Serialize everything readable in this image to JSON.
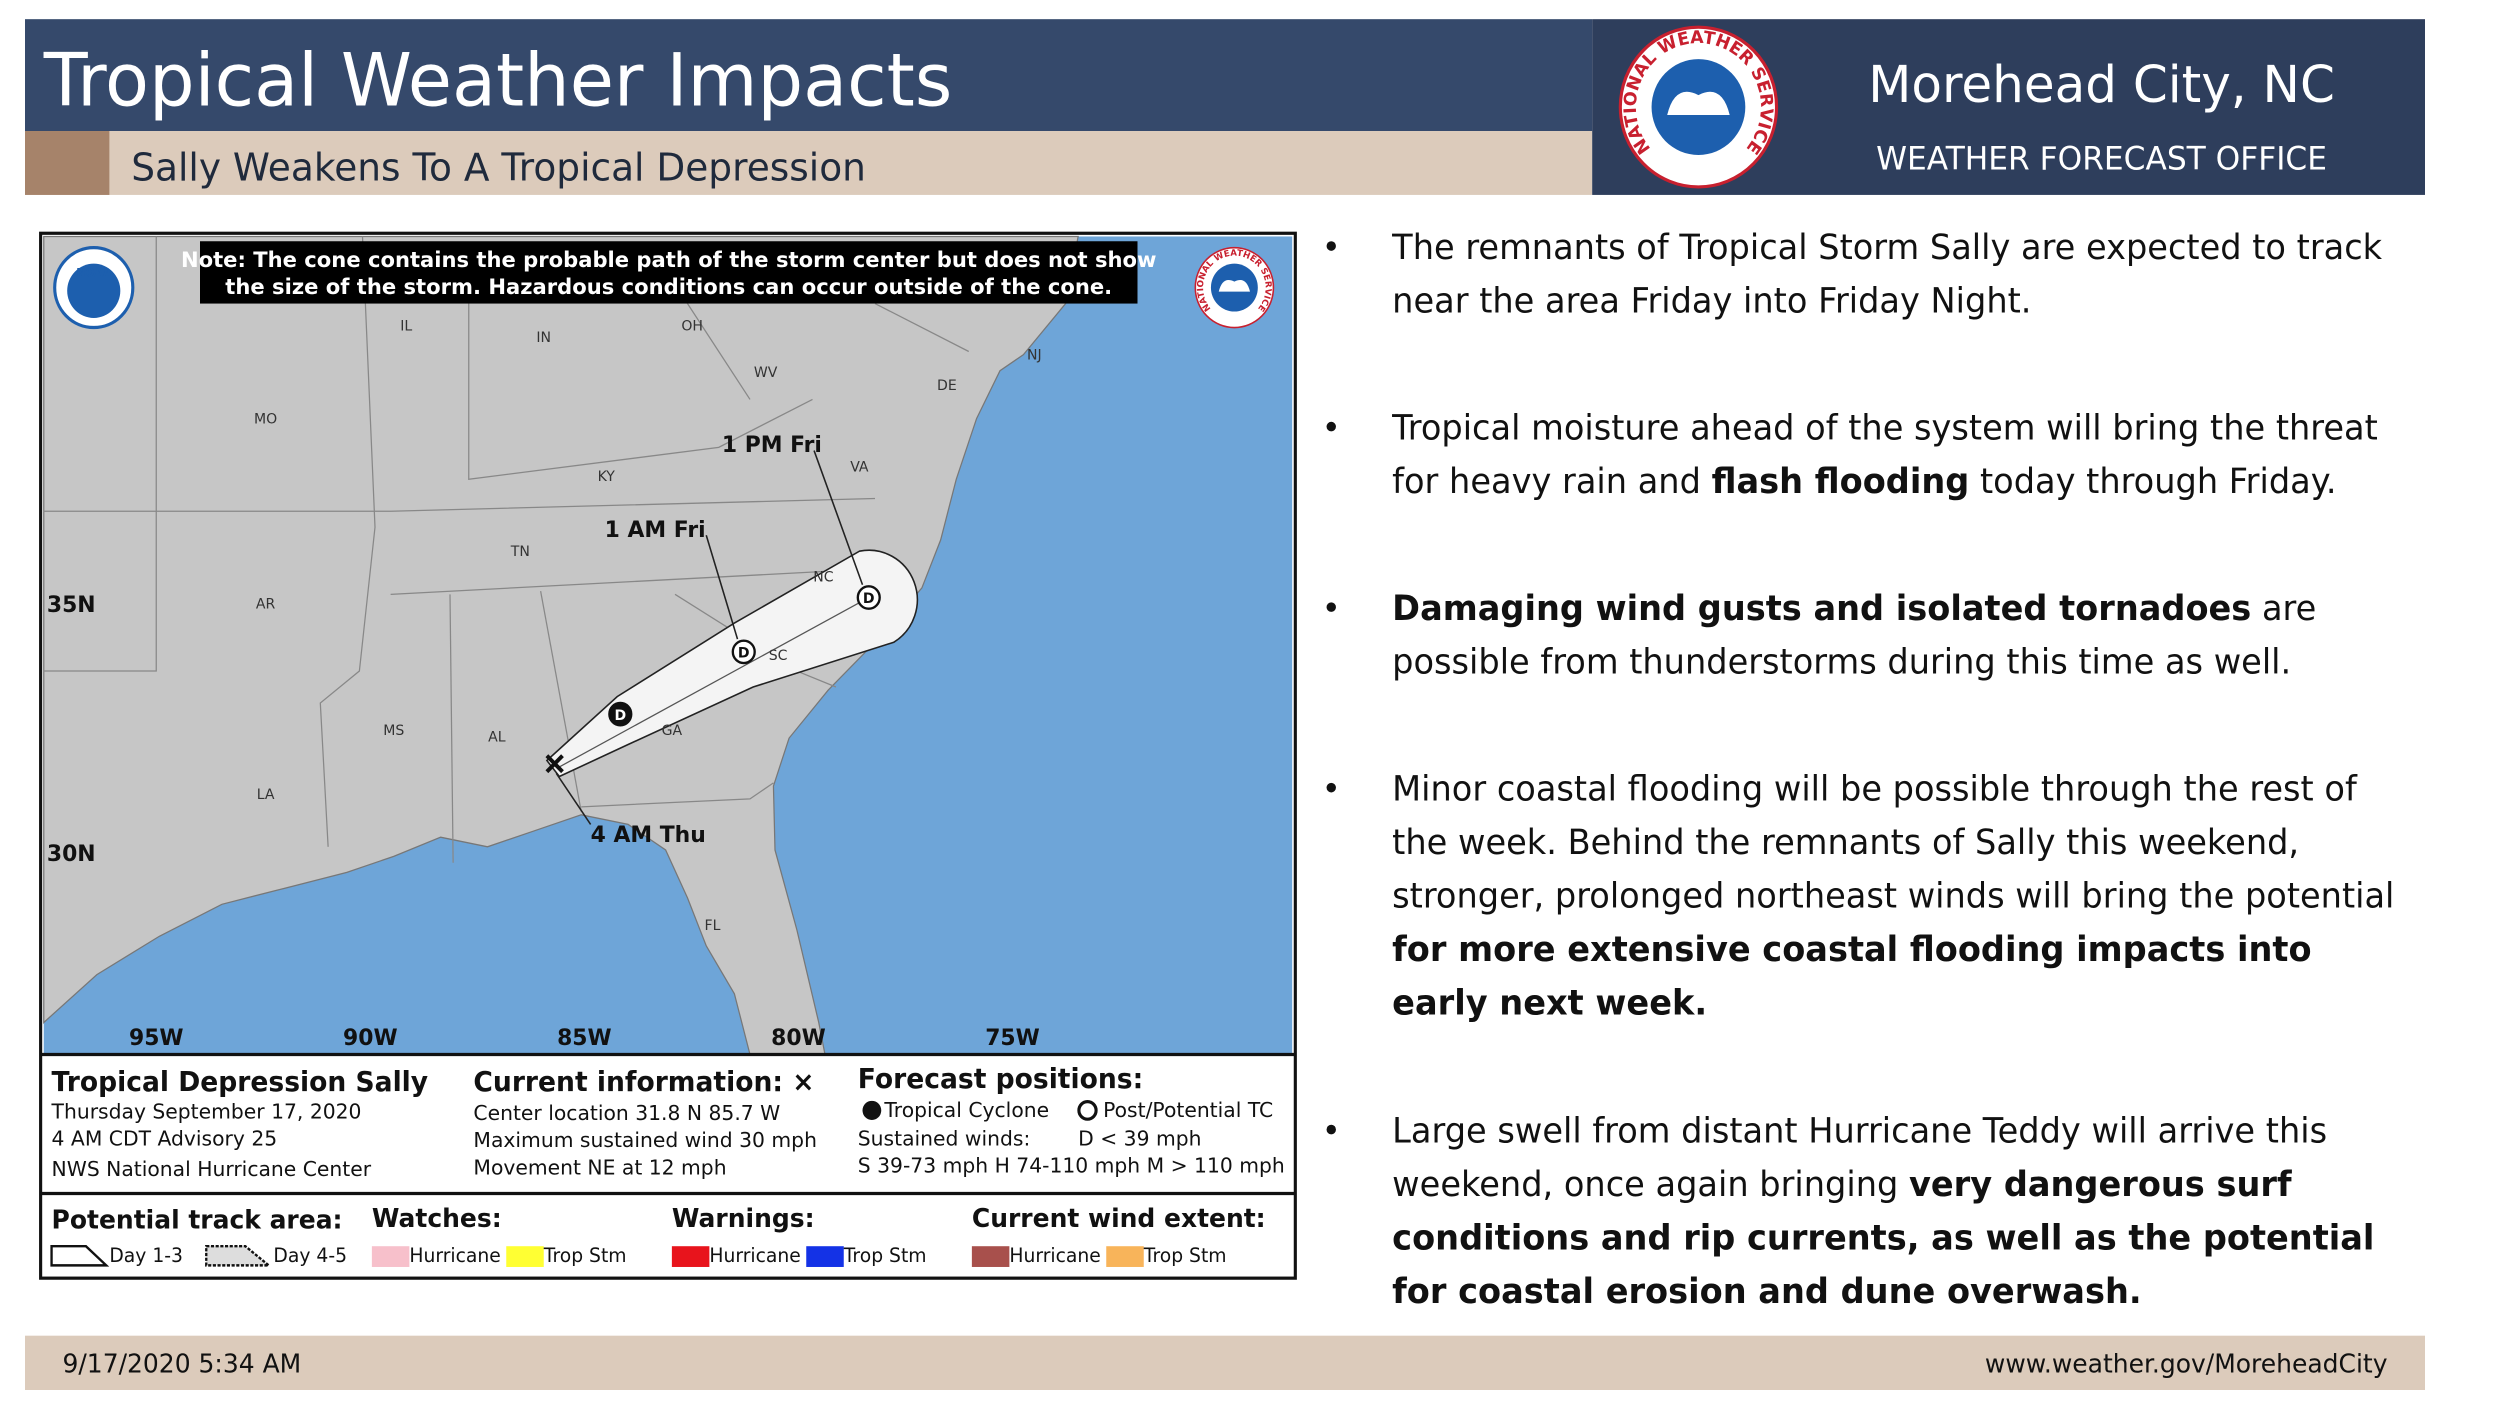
{
  "header": {
    "title": "Tropical Weather Impacts",
    "subtitle": "Sally Weakens To A Tropical Depression",
    "office": "Morehead City, NC",
    "office_type": "WEATHER FORECAST OFFICE",
    "logo_text": "NATIONAL WEATHER SERVICE"
  },
  "map": {
    "note": [
      "Note: The cone contains the probable path of the storm center but does not show",
      "the size of the storm. Hazardous conditions can occur outside of the cone."
    ],
    "noaa_logo": "NOAA",
    "nws_logo_text": "NATIONAL WEATHER SERVICE",
    "state_labels": [
      "IL",
      "IN",
      "OH",
      "MO",
      "WV",
      "KY",
      "VA",
      "TN",
      "NC",
      "AR",
      "SC",
      "MS",
      "AL",
      "GA",
      "LA",
      "FL",
      "NJ",
      "DE"
    ],
    "latitude_labels": [
      "35N",
      "30N"
    ],
    "longitude_labels": [
      "95W",
      "90W",
      "85W",
      "80W",
      "75W"
    ],
    "forecast_times": [
      "1 PM Fri",
      "1 AM Fri",
      "4 AM Thu"
    ],
    "forecast_symbols": [
      "D",
      "D",
      "D"
    ]
  },
  "info": {
    "storm": "Tropical Depression Sally",
    "date": "Thursday September 17, 2020",
    "advisory": "4 AM CDT Advisory 25",
    "center": "NWS National Hurricane Center",
    "current_title": "Current information: ×",
    "current_lines": [
      "Center location 31.8 N 85.7 W",
      "Maximum sustained wind 30 mph",
      "Movement NE at 12 mph"
    ],
    "forecast_title": "Forecast positions:",
    "tropical_cyclone": "Tropical Cyclone",
    "post_tc": "Post/Potential TC",
    "sustained": "Sustained winds:",
    "d_scale": "D < 39 mph",
    "scale": "S 39-73 mph  H 74-110 mph  M > 110 mph"
  },
  "legend": {
    "track": {
      "title": "Potential track area:",
      "items": [
        "Day 1-3",
        "Day 4-5"
      ]
    },
    "watches": {
      "title": "Watches:",
      "items": [
        "Hurricane",
        "Trop Stm"
      ]
    },
    "warnings": {
      "title": "Warnings:",
      "items": [
        "Hurricane",
        "Trop Stm"
      ]
    },
    "wind": {
      "title": "Current wind extent:",
      "items": [
        "Hurricane",
        "Trop Stm"
      ]
    }
  },
  "bullets": [
    [
      [
        {
          "text": "The remnants of Tropical Storm Sally are expected to track",
          "bold": false
        }
      ],
      [
        {
          "text": "near the area Friday into Friday Night.",
          "bold": false
        }
      ]
    ],
    [
      [
        {
          "text": "Tropical moisture ahead of the system will bring the threat",
          "bold": false
        }
      ],
      [
        {
          "text": "for heavy rain and ",
          "bold": false
        },
        {
          "text": "flash flooding",
          "bold": true
        },
        {
          "text": " today through Friday.",
          "bold": false
        }
      ]
    ],
    [
      [
        {
          "text": "Damaging wind gusts and isolated tornadoes",
          "bold": true
        },
        {
          "text": " are",
          "bold": false
        }
      ],
      [
        {
          "text": "possible from thunderstorms during this time as well.",
          "bold": false
        }
      ]
    ],
    [
      [
        {
          "text": "Minor coastal flooding will be possible through the rest of",
          "bold": false
        }
      ],
      [
        {
          "text": "the week. Behind the remnants of Sally this weekend,",
          "bold": false
        }
      ],
      [
        {
          "text": "stronger, prolonged northeast winds will bring the potential",
          "bold": false
        }
      ],
      [
        {
          "text": "for more extensive coastal flooding impacts into",
          "bold": true
        }
      ],
      [
        {
          "text": "early next week.",
          "bold": true
        }
      ]
    ],
    [
      [
        {
          "text": "Large swell from distant Hurricane Teddy will arrive this",
          "bold": false
        }
      ],
      [
        {
          "text": "weekend, once again bringing ",
          "bold": false
        },
        {
          "text": "very dangerous surf",
          "bold": true
        }
      ],
      [
        {
          "text": "conditions and rip currents, as well as the potential",
          "bold": true
        }
      ],
      [
        {
          "text": "for coastal erosion and dune overwash.",
          "bold": true
        }
      ]
    ]
  ],
  "footer": {
    "date": "9/17/2020 5:34 AM",
    "url": "www.weather.gov/MoreheadCity"
  }
}
